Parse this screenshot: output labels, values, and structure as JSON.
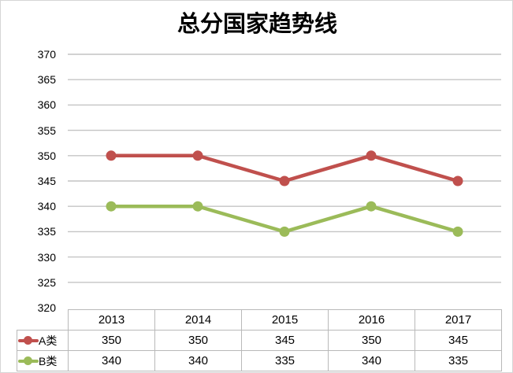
{
  "title": "总分国家趋势线",
  "colors": {
    "series_a": "#C0504D",
    "series_b": "#9BBB59",
    "gridline": "#C4C4C4",
    "table_border": "#B9B9B9",
    "text": "#000000"
  },
  "chart_data": {
    "type": "line",
    "title": "总分国家趋势线",
    "categories": [
      "2013",
      "2014",
      "2015",
      "2016",
      "2017"
    ],
    "series": [
      {
        "name": "A类",
        "color": "#C0504D",
        "values": [
          350,
          350,
          345,
          350,
          345
        ]
      },
      {
        "name": "B类",
        "color": "#9BBB59",
        "values": [
          340,
          340,
          335,
          340,
          335
        ]
      }
    ],
    "xlabel": "",
    "ylabel": "",
    "ylim": [
      320,
      370
    ],
    "ytick_step": 5,
    "grid": true,
    "legend_position": "data-table-left",
    "marker": "circle"
  }
}
